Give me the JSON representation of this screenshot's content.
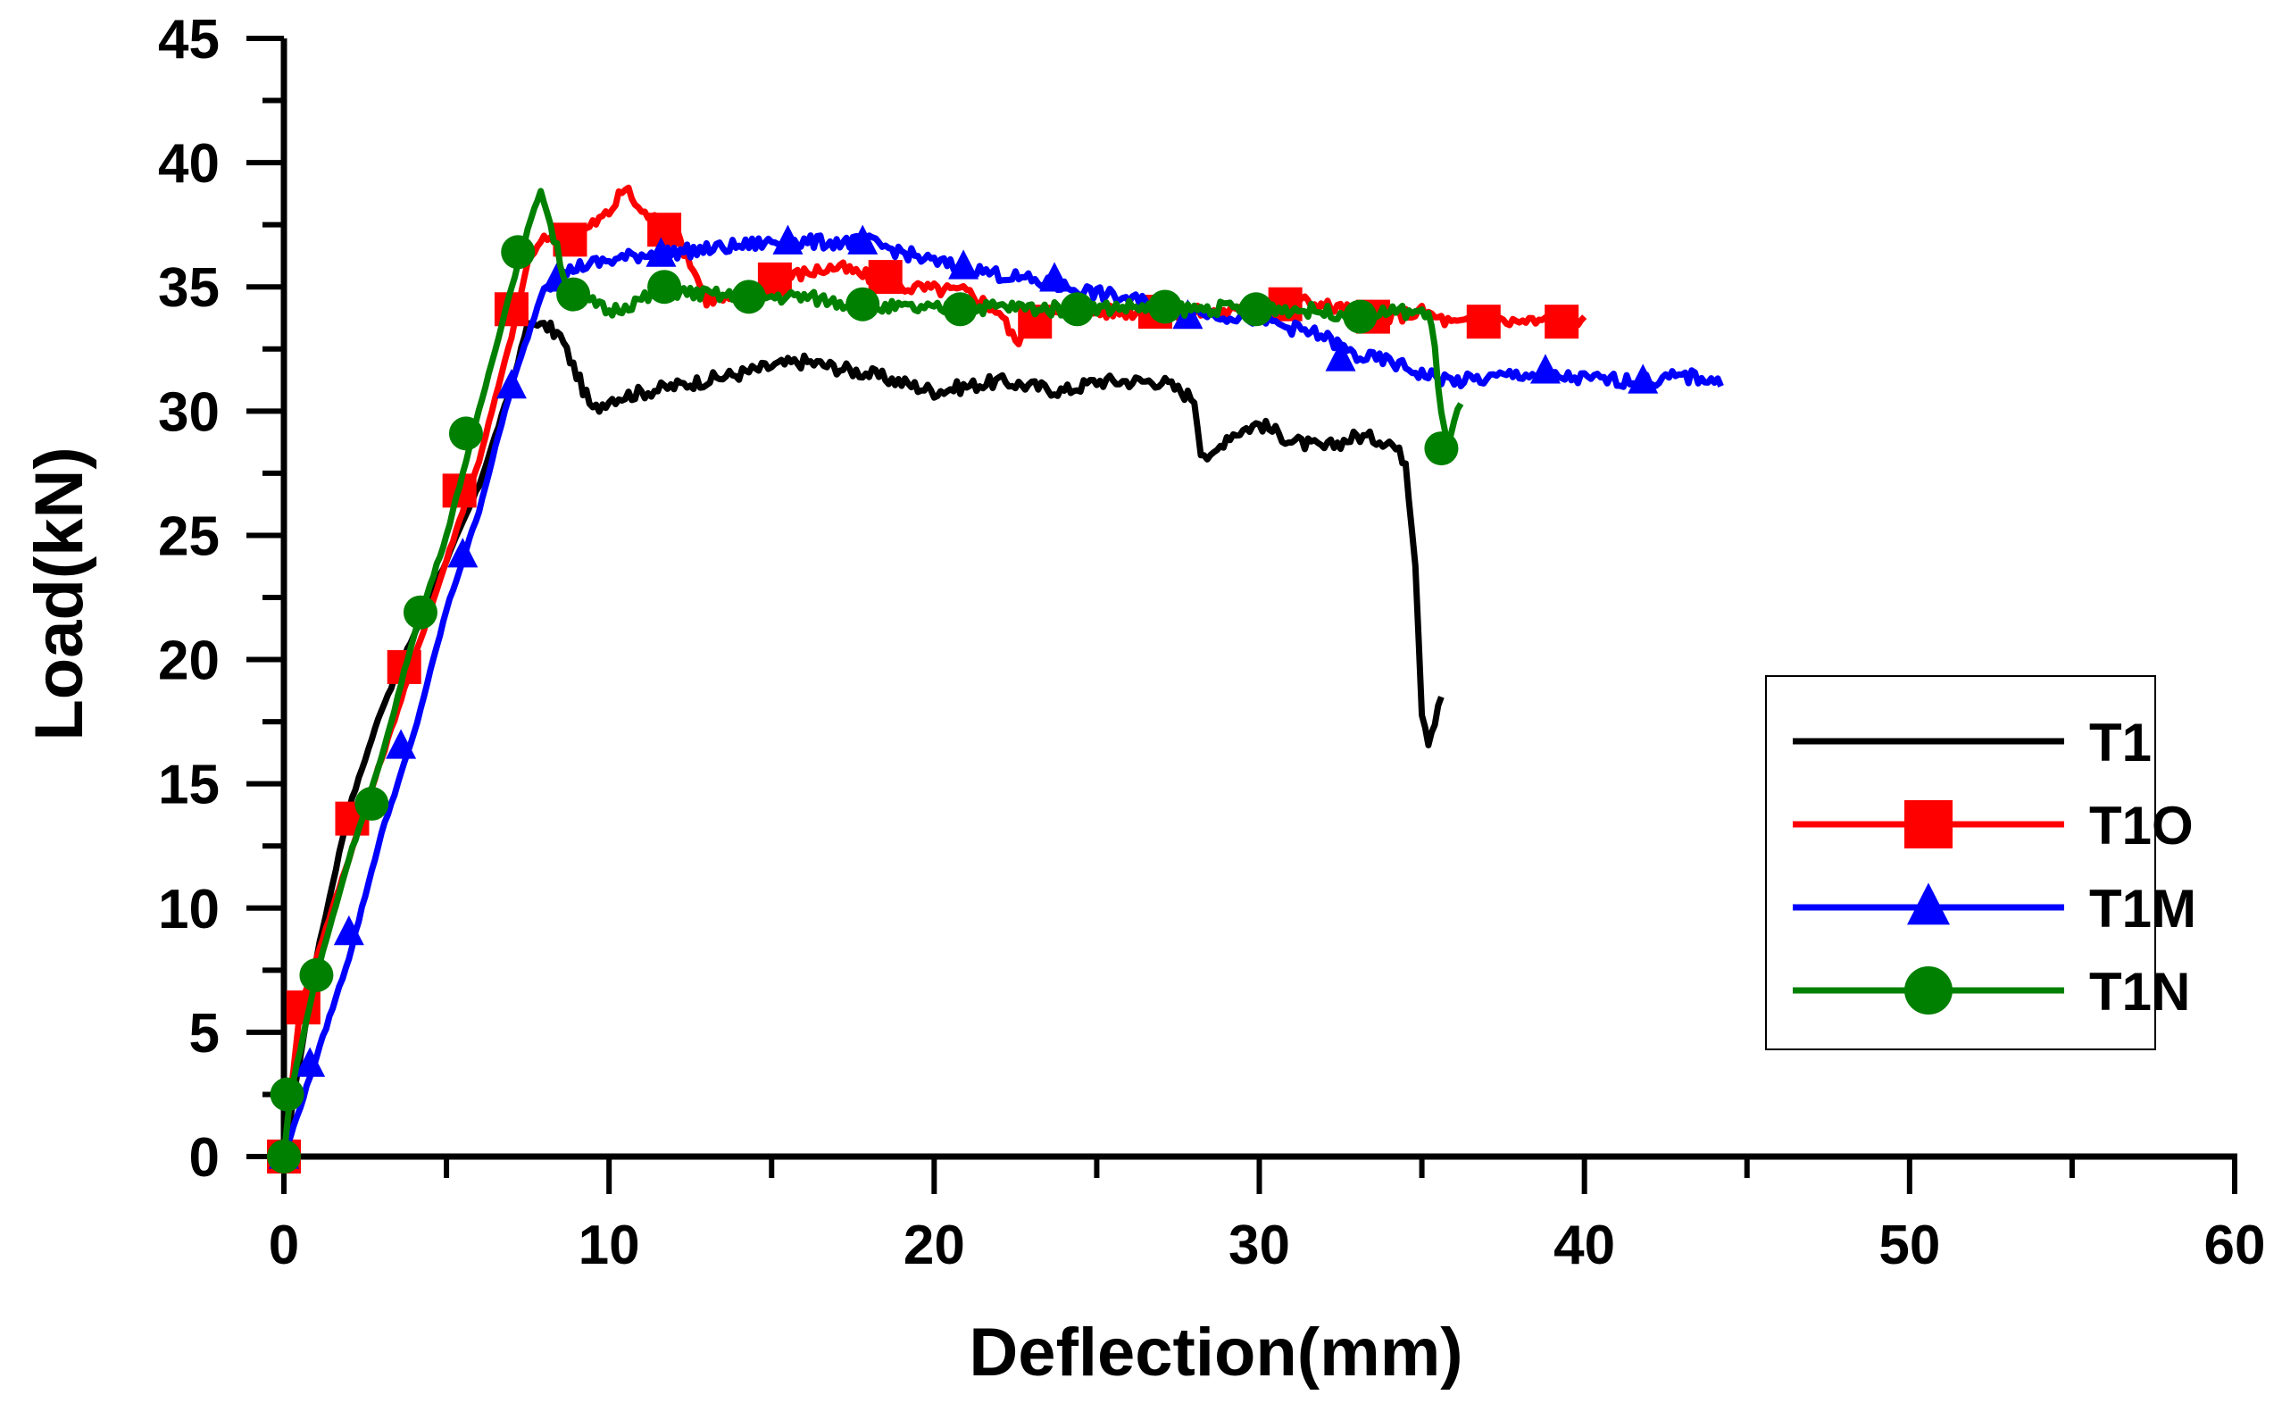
{
  "chart_data": {
    "type": "line",
    "title": "",
    "xlabel": "Deflection(mm)",
    "ylabel": "Load(kN)",
    "xlim": [
      0,
      60
    ],
    "ylim": [
      0,
      45
    ],
    "xticks": [
      0,
      10,
      20,
      30,
      40,
      50,
      60
    ],
    "yticks": [
      0,
      5,
      10,
      15,
      20,
      25,
      30,
      35,
      40,
      45
    ],
    "grid": false,
    "legend_position": "right",
    "series": [
      {
        "name": "T1",
        "color": "#000000",
        "marker": "none",
        "points": [
          [
            0,
            0
          ],
          [
            0.5,
            4
          ],
          [
            1,
            8
          ],
          [
            2,
            14
          ],
          [
            3,
            18
          ],
          [
            4,
            21
          ],
          [
            5,
            24
          ],
          [
            6,
            27
          ],
          [
            7,
            31
          ],
          [
            7.5,
            33.5
          ],
          [
            8,
            33.5
          ],
          [
            8.5,
            33
          ],
          [
            9,
            31.5
          ],
          [
            9.5,
            30
          ],
          [
            10,
            30.5
          ],
          [
            12,
            31
          ],
          [
            14,
            31.5
          ],
          [
            15,
            31.8
          ],
          [
            16,
            32
          ],
          [
            18,
            31.5
          ],
          [
            20,
            30.8
          ],
          [
            22,
            31.2
          ],
          [
            24,
            30.8
          ],
          [
            25,
            31.2
          ],
          [
            27,
            31.2
          ],
          [
            28,
            30.5
          ],
          [
            28.2,
            28.5
          ],
          [
            28.5,
            28
          ],
          [
            29,
            29
          ],
          [
            30,
            29.5
          ],
          [
            31,
            28.8
          ],
          [
            32,
            28.5
          ],
          [
            33,
            29
          ],
          [
            34,
            28.8
          ],
          [
            34.5,
            28
          ],
          [
            34.8,
            24
          ],
          [
            35,
            18
          ],
          [
            35.2,
            16.8
          ],
          [
            35.4,
            17.5
          ],
          [
            35.6,
            18.5
          ]
        ]
      },
      {
        "name": "T1O",
        "color": "#ff0000",
        "marker": "square",
        "points": [
          [
            0,
            0
          ],
          [
            0.5,
            6
          ],
          [
            1,
            8
          ],
          [
            2,
            12
          ],
          [
            3,
            16
          ],
          [
            4,
            20
          ],
          [
            5,
            24
          ],
          [
            6,
            28
          ],
          [
            7,
            33
          ],
          [
            7.5,
            36
          ],
          [
            8,
            37
          ],
          [
            9,
            37
          ],
          [
            9.5,
            37.5
          ],
          [
            10,
            38
          ],
          [
            10.5,
            39
          ],
          [
            11,
            38
          ],
          [
            12,
            37.3
          ],
          [
            12.5,
            36
          ],
          [
            13,
            34.5
          ],
          [
            14,
            34.5
          ],
          [
            15,
            35.3
          ],
          [
            17,
            35.8
          ],
          [
            19,
            35
          ],
          [
            21,
            34.8
          ],
          [
            22,
            34
          ],
          [
            22.5,
            32.8
          ],
          [
            23,
            33.5
          ],
          [
            24,
            34
          ],
          [
            26,
            34
          ],
          [
            28,
            34
          ],
          [
            30,
            34
          ],
          [
            31,
            34.5
          ],
          [
            33,
            34
          ],
          [
            34,
            33.8
          ],
          [
            35,
            34
          ],
          [
            36,
            33.5
          ],
          [
            37,
            33.6
          ],
          [
            38,
            33.6
          ],
          [
            39.5,
            33.6
          ],
          [
            40,
            33.8
          ]
        ],
        "marker_points": [
          [
            0,
            0
          ],
          [
            0.6,
            6
          ],
          [
            2.1,
            13.6
          ],
          [
            3.7,
            19.7
          ],
          [
            5.4,
            26.8
          ],
          [
            7,
            34.1
          ],
          [
            8.8,
            36.9
          ],
          [
            11.7,
            37.3
          ],
          [
            15.1,
            35.3
          ],
          [
            18.5,
            35.4
          ],
          [
            23.1,
            33.6
          ],
          [
            26.8,
            34
          ],
          [
            30.8,
            34.3
          ],
          [
            33.5,
            33.8
          ],
          [
            36.9,
            33.6
          ],
          [
            39.3,
            33.6
          ]
        ]
      },
      {
        "name": "T1M",
        "color": "#0000ff",
        "marker": "triangle",
        "points": [
          [
            0,
            0
          ],
          [
            0.5,
            2
          ],
          [
            1,
            4
          ],
          [
            2,
            8
          ],
          [
            3,
            13
          ],
          [
            4,
            17
          ],
          [
            5,
            22
          ],
          [
            6,
            26
          ],
          [
            7,
            31
          ],
          [
            8,
            35
          ],
          [
            9,
            35.8
          ],
          [
            11,
            36.3
          ],
          [
            13,
            36.5
          ],
          [
            15,
            36.8
          ],
          [
            17,
            36.8
          ],
          [
            18,
            36.8
          ],
          [
            20,
            36
          ],
          [
            22,
            35.5
          ],
          [
            24,
            35
          ],
          [
            26,
            34.5
          ],
          [
            28,
            34
          ],
          [
            30,
            33.7
          ],
          [
            32,
            33
          ],
          [
            33,
            32.2
          ],
          [
            34,
            32
          ],
          [
            35,
            31.5
          ],
          [
            36,
            31.2
          ],
          [
            37,
            31.3
          ],
          [
            38,
            31.5
          ],
          [
            40,
            31.3
          ],
          [
            42,
            31.2
          ],
          [
            43,
            31.4
          ],
          [
            44,
            31.3
          ],
          [
            44.2,
            31
          ]
        ],
        "marker_points": [
          [
            0,
            0
          ],
          [
            0.8,
            3.7
          ],
          [
            2,
            9
          ],
          [
            3.6,
            16.5
          ],
          [
            5.5,
            24.2
          ],
          [
            7,
            31
          ],
          [
            8.4,
            35.3
          ],
          [
            11.6,
            36.3
          ],
          [
            15.5,
            36.8
          ],
          [
            17.8,
            36.8
          ],
          [
            20.9,
            35.8
          ],
          [
            23.7,
            35.3
          ],
          [
            27.8,
            33.8
          ],
          [
            32.5,
            32.1
          ],
          [
            38.8,
            31.6
          ],
          [
            41.8,
            31.2
          ]
        ]
      },
      {
        "name": "T1N",
        "color": "#008000",
        "marker": "circle",
        "points": [
          [
            0,
            0
          ],
          [
            0.2,
            2.5
          ],
          [
            1,
            7.3
          ],
          [
            2,
            12
          ],
          [
            3,
            16
          ],
          [
            4,
            21
          ],
          [
            5,
            25
          ],
          [
            6,
            30
          ],
          [
            7,
            35
          ],
          [
            7.5,
            37.3
          ],
          [
            7.9,
            38.9
          ],
          [
            8.2,
            37.5
          ],
          [
            8.6,
            35.5
          ],
          [
            9,
            34.7
          ],
          [
            10,
            34
          ],
          [
            11,
            34.5
          ],
          [
            12,
            34.8
          ],
          [
            14,
            34.6
          ],
          [
            16,
            34.6
          ],
          [
            18,
            34.2
          ],
          [
            20,
            34.1
          ],
          [
            22,
            34.2
          ],
          [
            24,
            34.1
          ],
          [
            26,
            34.2
          ],
          [
            28,
            34.1
          ],
          [
            30,
            34.2
          ],
          [
            32,
            34
          ],
          [
            33,
            33.9
          ],
          [
            34,
            34
          ],
          [
            35,
            34
          ],
          [
            35.3,
            33.6
          ],
          [
            35.6,
            30
          ],
          [
            35.8,
            28.5
          ],
          [
            36,
            29.5
          ],
          [
            36.2,
            30.3
          ]
        ],
        "marker_points": [
          [
            0,
            0
          ],
          [
            0.1,
            2.5
          ],
          [
            1,
            7.3
          ],
          [
            2.7,
            14.2
          ],
          [
            4.2,
            21.9
          ],
          [
            5.6,
            29.1
          ],
          [
            7.2,
            36.4
          ],
          [
            8.9,
            34.7
          ],
          [
            11.7,
            35
          ],
          [
            14.3,
            34.6
          ],
          [
            17.8,
            34.3
          ],
          [
            20.8,
            34.1
          ],
          [
            24.4,
            34.1
          ],
          [
            27.1,
            34.2
          ],
          [
            29.9,
            34.1
          ],
          [
            33.1,
            33.8
          ],
          [
            35.6,
            28.5
          ]
        ]
      }
    ]
  }
}
